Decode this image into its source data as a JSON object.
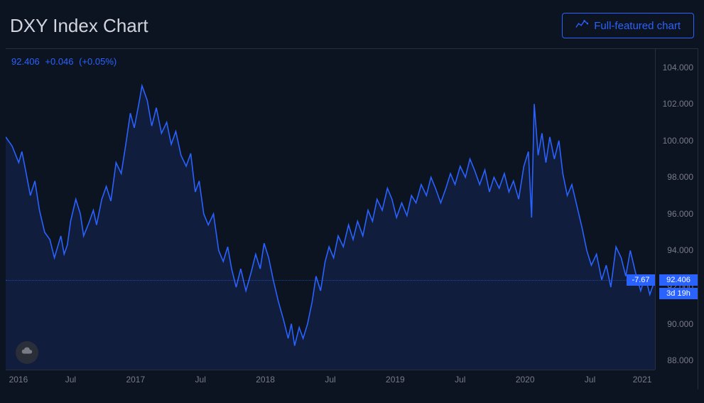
{
  "header": {
    "title": "DXY Index Chart",
    "full_chart_label": "Full-featured chart"
  },
  "legend": {
    "value": "92.406",
    "change_abs": "+0.046",
    "change_pct": "(+0.05%)"
  },
  "price_box": {
    "change": "-7.67",
    "current": "92.406",
    "countdown": "3d 19h"
  },
  "chart": {
    "type": "line",
    "line_color": "#2962ff",
    "area_fill_top": "#2962ff",
    "area_fill_opacity": 0.12,
    "background_color": "#0d1421",
    "grid_color": "#2a2e39",
    "axis_text_color": "#787b86",
    "ylim": [
      87.5,
      105
    ],
    "yticks": [
      88,
      90,
      92,
      94,
      96,
      98,
      100,
      102,
      104
    ],
    "ytick_labels": [
      "88.000",
      "90.000",
      "92.000",
      "94.000",
      "96.000",
      "98.000",
      "100.000",
      "102.000",
      "104.000"
    ],
    "current_price": 92.406,
    "x_labels": [
      {
        "t": 0.0,
        "label": "2016"
      },
      {
        "t": 0.1,
        "label": "Jul"
      },
      {
        "t": 0.2,
        "label": "2017"
      },
      {
        "t": 0.3,
        "label": "Jul"
      },
      {
        "t": 0.4,
        "label": "2018"
      },
      {
        "t": 0.5,
        "label": "Jul"
      },
      {
        "t": 0.6,
        "label": "2019"
      },
      {
        "t": 0.7,
        "label": "Jul"
      },
      {
        "t": 0.8,
        "label": "2020"
      },
      {
        "t": 0.9,
        "label": "Jul"
      },
      {
        "t": 1.0,
        "label": "2021"
      }
    ],
    "series": [
      {
        "t": 0.0,
        "v": 100.2
      },
      {
        "t": 0.01,
        "v": 99.7
      },
      {
        "t": 0.02,
        "v": 98.8
      },
      {
        "t": 0.025,
        "v": 99.4
      },
      {
        "t": 0.03,
        "v": 98.5
      },
      {
        "t": 0.038,
        "v": 97.0
      },
      {
        "t": 0.045,
        "v": 97.8
      },
      {
        "t": 0.052,
        "v": 96.2
      },
      {
        "t": 0.06,
        "v": 95.0
      },
      {
        "t": 0.068,
        "v": 94.6
      },
      {
        "t": 0.075,
        "v": 93.6
      },
      {
        "t": 0.085,
        "v": 94.8
      },
      {
        "t": 0.09,
        "v": 93.8
      },
      {
        "t": 0.095,
        "v": 94.3
      },
      {
        "t": 0.1,
        "v": 95.6
      },
      {
        "t": 0.108,
        "v": 96.8
      },
      {
        "t": 0.115,
        "v": 96.0
      },
      {
        "t": 0.12,
        "v": 94.8
      },
      {
        "t": 0.128,
        "v": 95.5
      },
      {
        "t": 0.135,
        "v": 96.2
      },
      {
        "t": 0.14,
        "v": 95.4
      },
      {
        "t": 0.148,
        "v": 96.8
      },
      {
        "t": 0.155,
        "v": 97.5
      },
      {
        "t": 0.162,
        "v": 96.7
      },
      {
        "t": 0.17,
        "v": 98.8
      },
      {
        "t": 0.178,
        "v": 98.2
      },
      {
        "t": 0.185,
        "v": 99.8
      },
      {
        "t": 0.192,
        "v": 101.5
      },
      {
        "t": 0.198,
        "v": 100.7
      },
      {
        "t": 0.205,
        "v": 102.0
      },
      {
        "t": 0.21,
        "v": 103.0
      },
      {
        "t": 0.218,
        "v": 102.2
      },
      {
        "t": 0.225,
        "v": 100.8
      },
      {
        "t": 0.232,
        "v": 101.8
      },
      {
        "t": 0.24,
        "v": 100.4
      },
      {
        "t": 0.248,
        "v": 101.0
      },
      {
        "t": 0.255,
        "v": 99.8
      },
      {
        "t": 0.262,
        "v": 100.5
      },
      {
        "t": 0.27,
        "v": 99.2
      },
      {
        "t": 0.278,
        "v": 98.6
      },
      {
        "t": 0.285,
        "v": 99.3
      },
      {
        "t": 0.292,
        "v": 97.2
      },
      {
        "t": 0.298,
        "v": 97.8
      },
      {
        "t": 0.305,
        "v": 96.0
      },
      {
        "t": 0.312,
        "v": 95.4
      },
      {
        "t": 0.32,
        "v": 96.0
      },
      {
        "t": 0.328,
        "v": 94.0
      },
      {
        "t": 0.335,
        "v": 93.4
      },
      {
        "t": 0.342,
        "v": 94.2
      },
      {
        "t": 0.348,
        "v": 93.0
      },
      {
        "t": 0.355,
        "v": 92.0
      },
      {
        "t": 0.362,
        "v": 93.0
      },
      {
        "t": 0.37,
        "v": 91.8
      },
      {
        "t": 0.378,
        "v": 92.8
      },
      {
        "t": 0.385,
        "v": 93.8
      },
      {
        "t": 0.392,
        "v": 93.0
      },
      {
        "t": 0.398,
        "v": 94.4
      },
      {
        "t": 0.405,
        "v": 93.6
      },
      {
        "t": 0.412,
        "v": 92.4
      },
      {
        "t": 0.42,
        "v": 91.2
      },
      {
        "t": 0.428,
        "v": 90.2
      },
      {
        "t": 0.435,
        "v": 89.2
      },
      {
        "t": 0.44,
        "v": 90.0
      },
      {
        "t": 0.445,
        "v": 88.8
      },
      {
        "t": 0.452,
        "v": 89.8
      },
      {
        "t": 0.458,
        "v": 89.2
      },
      {
        "t": 0.465,
        "v": 90.0
      },
      {
        "t": 0.472,
        "v": 91.2
      },
      {
        "t": 0.478,
        "v": 92.6
      },
      {
        "t": 0.485,
        "v": 91.8
      },
      {
        "t": 0.492,
        "v": 93.4
      },
      {
        "t": 0.498,
        "v": 94.2
      },
      {
        "t": 0.505,
        "v": 93.6
      },
      {
        "t": 0.512,
        "v": 94.8
      },
      {
        "t": 0.52,
        "v": 94.2
      },
      {
        "t": 0.528,
        "v": 95.4
      },
      {
        "t": 0.535,
        "v": 94.6
      },
      {
        "t": 0.542,
        "v": 95.6
      },
      {
        "t": 0.55,
        "v": 94.8
      },
      {
        "t": 0.558,
        "v": 96.2
      },
      {
        "t": 0.565,
        "v": 95.6
      },
      {
        "t": 0.572,
        "v": 96.8
      },
      {
        "t": 0.58,
        "v": 96.2
      },
      {
        "t": 0.588,
        "v": 97.4
      },
      {
        "t": 0.595,
        "v": 96.8
      },
      {
        "t": 0.602,
        "v": 95.8
      },
      {
        "t": 0.61,
        "v": 96.6
      },
      {
        "t": 0.618,
        "v": 95.9
      },
      {
        "t": 0.625,
        "v": 97.0
      },
      {
        "t": 0.632,
        "v": 96.6
      },
      {
        "t": 0.64,
        "v": 97.6
      },
      {
        "t": 0.648,
        "v": 97.0
      },
      {
        "t": 0.655,
        "v": 98.0
      },
      {
        "t": 0.662,
        "v": 97.4
      },
      {
        "t": 0.67,
        "v": 96.6
      },
      {
        "t": 0.678,
        "v": 97.4
      },
      {
        "t": 0.685,
        "v": 98.2
      },
      {
        "t": 0.692,
        "v": 97.6
      },
      {
        "t": 0.7,
        "v": 98.6
      },
      {
        "t": 0.708,
        "v": 98.0
      },
      {
        "t": 0.715,
        "v": 99.0
      },
      {
        "t": 0.722,
        "v": 98.4
      },
      {
        "t": 0.73,
        "v": 97.6
      },
      {
        "t": 0.738,
        "v": 98.4
      },
      {
        "t": 0.745,
        "v": 97.2
      },
      {
        "t": 0.752,
        "v": 98.0
      },
      {
        "t": 0.76,
        "v": 97.4
      },
      {
        "t": 0.768,
        "v": 98.2
      },
      {
        "t": 0.775,
        "v": 97.2
      },
      {
        "t": 0.782,
        "v": 97.8
      },
      {
        "t": 0.79,
        "v": 96.8
      },
      {
        "t": 0.798,
        "v": 98.6
      },
      {
        "t": 0.805,
        "v": 99.4
      },
      {
        "t": 0.81,
        "v": 95.8
      },
      {
        "t": 0.814,
        "v": 102.0
      },
      {
        "t": 0.82,
        "v": 99.2
      },
      {
        "t": 0.826,
        "v": 100.4
      },
      {
        "t": 0.832,
        "v": 98.8
      },
      {
        "t": 0.838,
        "v": 100.2
      },
      {
        "t": 0.845,
        "v": 99.0
      },
      {
        "t": 0.852,
        "v": 100.0
      },
      {
        "t": 0.858,
        "v": 98.2
      },
      {
        "t": 0.865,
        "v": 97.0
      },
      {
        "t": 0.872,
        "v": 97.6
      },
      {
        "t": 0.88,
        "v": 96.4
      },
      {
        "t": 0.888,
        "v": 95.2
      },
      {
        "t": 0.895,
        "v": 94.0
      },
      {
        "t": 0.902,
        "v": 93.2
      },
      {
        "t": 0.91,
        "v": 93.8
      },
      {
        "t": 0.918,
        "v": 92.4
      },
      {
        "t": 0.925,
        "v": 93.2
      },
      {
        "t": 0.932,
        "v": 92.0
      },
      {
        "t": 0.94,
        "v": 94.2
      },
      {
        "t": 0.948,
        "v": 93.6
      },
      {
        "t": 0.955,
        "v": 92.6
      },
      {
        "t": 0.962,
        "v": 94.0
      },
      {
        "t": 0.97,
        "v": 92.8
      },
      {
        "t": 0.978,
        "v": 91.8
      },
      {
        "t": 0.985,
        "v": 92.6
      },
      {
        "t": 0.992,
        "v": 91.6
      },
      {
        "t": 1.0,
        "v": 92.406
      }
    ]
  }
}
